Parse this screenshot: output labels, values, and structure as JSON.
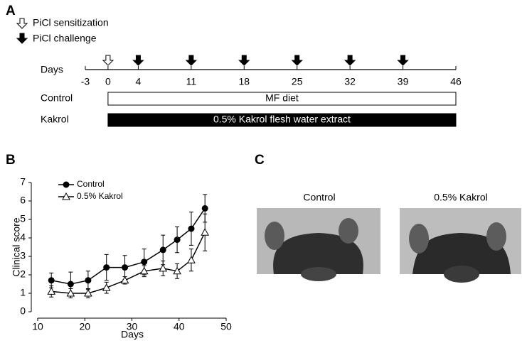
{
  "panels": {
    "a": "A",
    "b": "B",
    "c": "C"
  },
  "legend": {
    "sensitization": "PiCl sensitization",
    "challenge": "PiCl challenge"
  },
  "timeline": {
    "label": "Days",
    "xlim": [
      -3,
      46
    ],
    "ticks": [
      -3,
      0,
      4,
      11,
      18,
      25,
      32,
      39,
      46
    ],
    "sensitization_days": [
      0
    ],
    "challenge_days": [
      4,
      11,
      18,
      25,
      32,
      39
    ],
    "rows": [
      {
        "name": "Control",
        "text": "MF diet",
        "start": 0,
        "end": 46,
        "fill": "#ffffff"
      },
      {
        "name": "Kakrol",
        "text": "0.5% Kakrol flesh water extract",
        "start": 0,
        "end": 46,
        "fill": "#000000"
      }
    ]
  },
  "chart_data": {
    "type": "line",
    "xlabel": "Days",
    "ylabel": "Clinical score",
    "x": [
      12.9,
      17,
      20.7,
      24.6,
      28.5,
      32.6,
      36.6,
      39.6,
      42.6,
      45.5
    ],
    "series": [
      {
        "name": "Control",
        "color": "#000000",
        "marker": "circle",
        "values": [
          1.7,
          1.5,
          1.7,
          2.4,
          2.4,
          2.7,
          3.35,
          3.9,
          4.5,
          5.6
        ],
        "errors": [
          0.4,
          0.65,
          0.5,
          0.7,
          0.65,
          0.7,
          0.8,
          0.7,
          0.9,
          0.75
        ]
      },
      {
        "name": "0.5% Kakrol",
        "color": "#000000",
        "marker": "triangle",
        "values": [
          1.1,
          1.0,
          1.0,
          1.3,
          1.7,
          2.2,
          2.35,
          2.2,
          2.8,
          4.3
        ],
        "errors": [
          0.3,
          0.25,
          0.25,
          0.3,
          0.2,
          0.3,
          0.4,
          0.4,
          0.6,
          1.0
        ]
      }
    ],
    "xlim": [
      10,
      50
    ],
    "xticks": [
      10,
      20,
      30,
      40,
      50
    ],
    "ylim": [
      0,
      7
    ],
    "yticks": [
      0,
      1,
      2,
      3,
      4,
      5,
      6,
      7
    ],
    "grid": false,
    "legend_loc": "upper left"
  },
  "photos": [
    {
      "label": "Control"
    },
    {
      "label": "0.5% Kakrol"
    }
  ]
}
